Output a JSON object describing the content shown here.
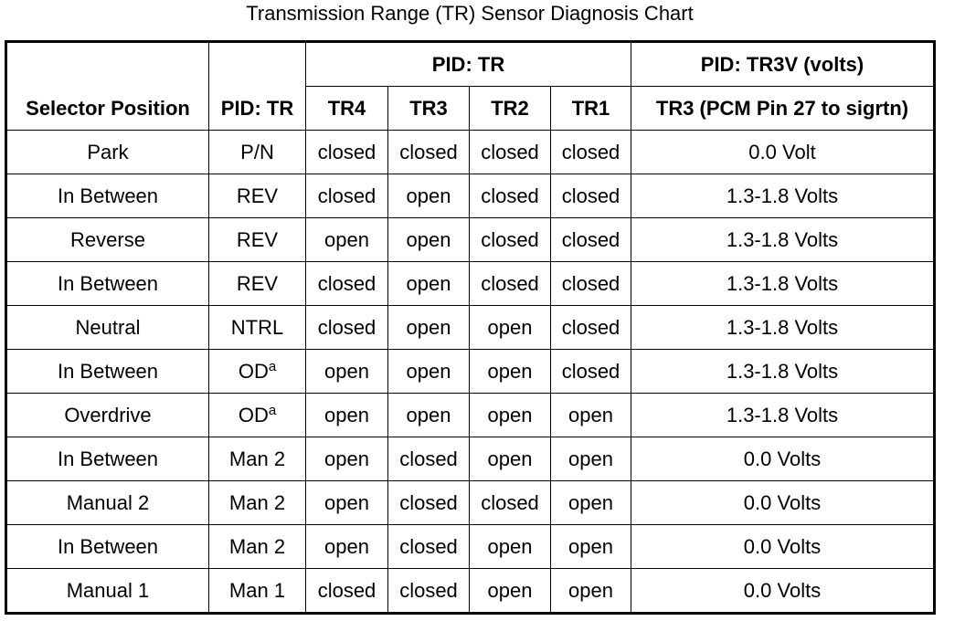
{
  "title": "Transmission Range (TR) Sensor Diagnosis Chart",
  "table": {
    "header": {
      "selector": "Selector Position",
      "pid": "PID: TR",
      "group_tr": "PID: TR",
      "group_tr3v": "PID: TR3V (volts)",
      "sub": [
        "TR4",
        "TR3",
        "TR2",
        "TR1",
        "TR3 (PCM Pin 27 to sigrtn)"
      ]
    },
    "rows": [
      [
        "Park",
        "P/N",
        "closed",
        "closed",
        "closed",
        "closed",
        "0.0 Volt"
      ],
      [
        "In Between",
        "REV",
        "closed",
        "open",
        "closed",
        "closed",
        "1.3-1.8 Volts"
      ],
      [
        "Reverse",
        "REV",
        "open",
        "open",
        "closed",
        "closed",
        "1.3-1.8 Volts"
      ],
      [
        "In Between",
        "REV",
        "closed",
        "open",
        "closed",
        "closed",
        "1.3-1.8 Volts"
      ],
      [
        "Neutral",
        "NTRL",
        "closed",
        "open",
        "open",
        "closed",
        "1.3-1.8 Volts"
      ],
      [
        "In Between",
        {
          "text": "OD",
          "sup": "a"
        },
        "open",
        "open",
        "open",
        "closed",
        "1.3-1.8 Volts"
      ],
      [
        "Overdrive",
        {
          "text": "OD",
          "sup": "a"
        },
        "open",
        "open",
        "open",
        "open",
        "1.3-1.8 Volts"
      ],
      [
        "In Between",
        "Man 2",
        "open",
        "closed",
        "open",
        "open",
        "0.0 Volts"
      ],
      [
        "Manual 2",
        "Man 2",
        "open",
        "closed",
        "closed",
        "open",
        "0.0 Volts"
      ],
      [
        "In Between",
        "Man 2",
        "open",
        "closed",
        "open",
        "open",
        "0.0 Volts"
      ],
      [
        "Manual 1",
        "Man 1",
        "closed",
        "closed",
        "open",
        "open",
        "0.0 Volts"
      ]
    ]
  }
}
